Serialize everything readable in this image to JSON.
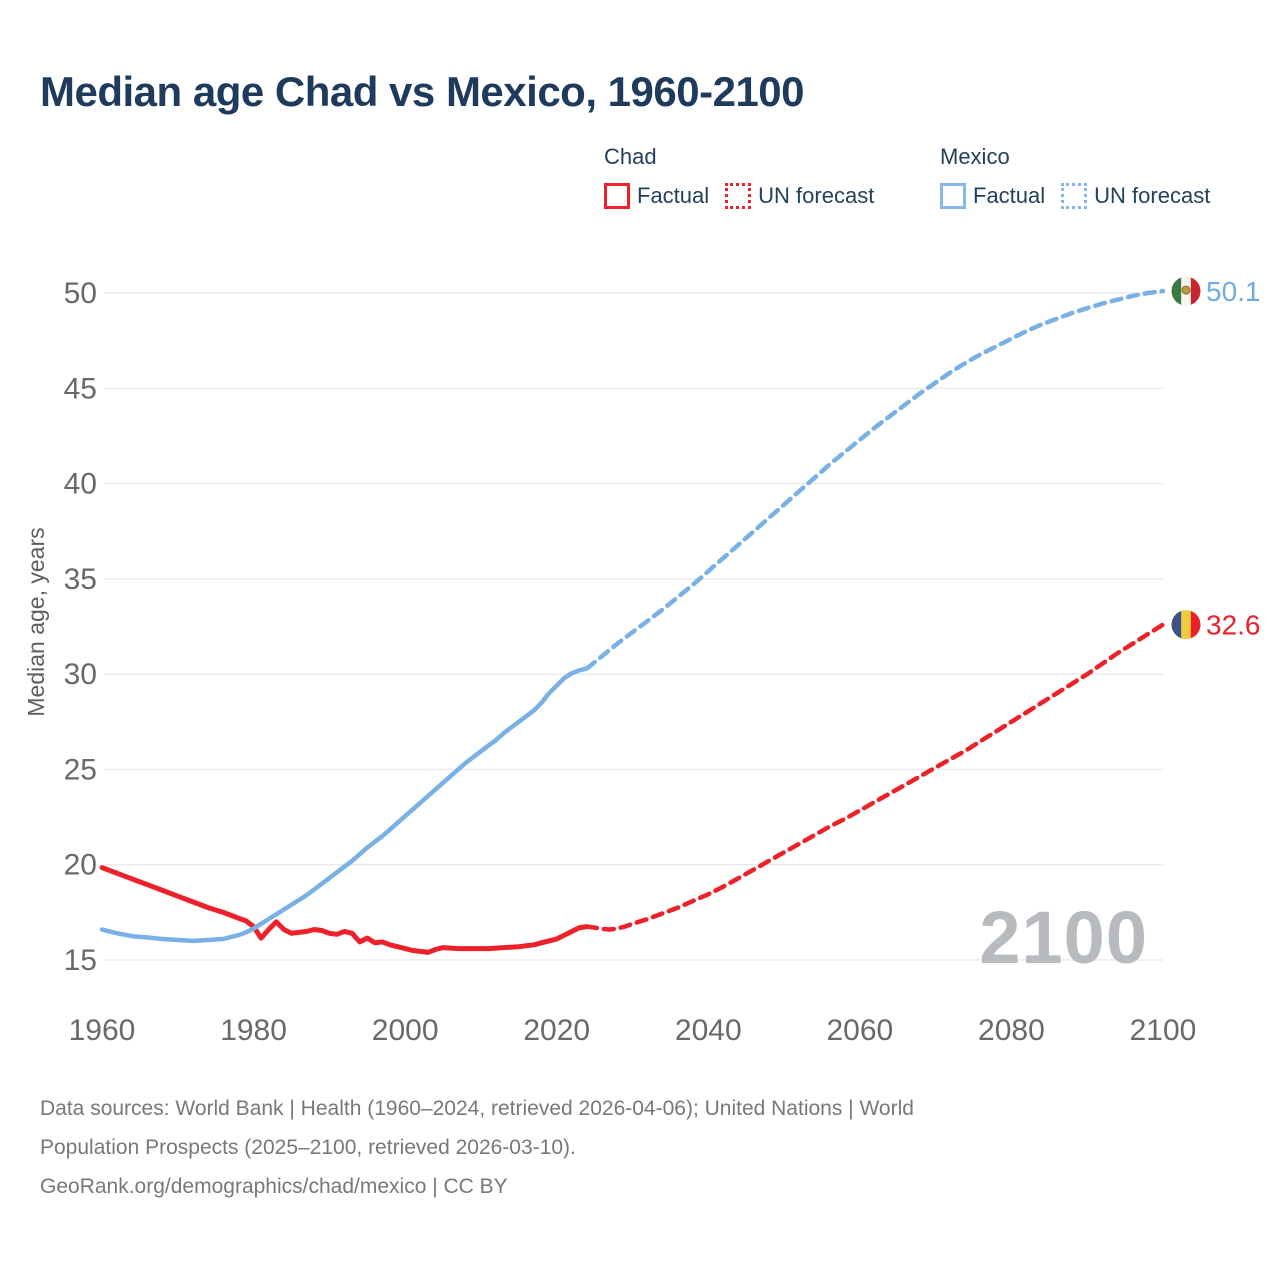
{
  "title": "Median age Chad vs Mexico, 1960-2100",
  "legend": {
    "groups": [
      {
        "name": "Chad",
        "color": "#ed2129",
        "items": [
          {
            "label": "Factual",
            "style": "solid"
          },
          {
            "label": "UN forecast",
            "style": "dotted"
          }
        ]
      },
      {
        "name": "Mexico",
        "color": "#85b8e8",
        "items": [
          {
            "label": "Factual",
            "style": "solid"
          },
          {
            "label": "UN forecast",
            "style": "dotted"
          }
        ]
      }
    ]
  },
  "chart_data": {
    "type": "line",
    "title": "Median age Chad vs Mexico, 1960-2100",
    "xlabel": "",
    "ylabel": "Median age, years",
    "xlim": [
      1960,
      2100
    ],
    "ylim": [
      15,
      50
    ],
    "x_ticks": [
      1960,
      1980,
      2000,
      2020,
      2040,
      2060,
      2080,
      2100
    ],
    "y_ticks": [
      15,
      20,
      25,
      30,
      35,
      40,
      45,
      50
    ],
    "grid": true,
    "watermark": "2100",
    "series": [
      {
        "name": "Chad factual",
        "color": "#ed2129",
        "dash": "solid",
        "width": 5,
        "points": [
          [
            1960,
            19.85
          ],
          [
            1962,
            19.55
          ],
          [
            1964,
            19.25
          ],
          [
            1966,
            18.95
          ],
          [
            1968,
            18.65
          ],
          [
            1970,
            18.35
          ],
          [
            1972,
            18.05
          ],
          [
            1974,
            17.75
          ],
          [
            1976,
            17.5
          ],
          [
            1978,
            17.2
          ],
          [
            1979,
            17.05
          ],
          [
            1980,
            16.75
          ],
          [
            1981,
            16.15
          ],
          [
            1982,
            16.6
          ],
          [
            1983,
            17.0
          ],
          [
            1984,
            16.6
          ],
          [
            1985,
            16.4
          ],
          [
            1986,
            16.45
          ],
          [
            1987,
            16.5
          ],
          [
            1988,
            16.6
          ],
          [
            1989,
            16.55
          ],
          [
            1990,
            16.4
          ],
          [
            1991,
            16.35
          ],
          [
            1992,
            16.5
          ],
          [
            1993,
            16.4
          ],
          [
            1994,
            15.95
          ],
          [
            1995,
            16.15
          ],
          [
            1996,
            15.9
          ],
          [
            1997,
            15.95
          ],
          [
            1998,
            15.8
          ],
          [
            1999,
            15.7
          ],
          [
            2000,
            15.6
          ],
          [
            2001,
            15.5
          ],
          [
            2002,
            15.45
          ],
          [
            2003,
            15.4
          ],
          [
            2004,
            15.55
          ],
          [
            2005,
            15.65
          ],
          [
            2007,
            15.6
          ],
          [
            2009,
            15.6
          ],
          [
            2011,
            15.6
          ],
          [
            2013,
            15.65
          ],
          [
            2015,
            15.7
          ],
          [
            2016,
            15.75
          ],
          [
            2017,
            15.8
          ],
          [
            2018,
            15.9
          ],
          [
            2019,
            16.0
          ],
          [
            2020,
            16.1
          ],
          [
            2021,
            16.3
          ],
          [
            2022,
            16.5
          ],
          [
            2023,
            16.7
          ],
          [
            2024,
            16.75
          ]
        ]
      },
      {
        "name": "Chad UN forecast",
        "color": "#ed2129",
        "dash": "dashed",
        "width": 4.5,
        "points": [
          [
            2024,
            16.75
          ],
          [
            2025,
            16.7
          ],
          [
            2026,
            16.63
          ],
          [
            2027,
            16.6
          ],
          [
            2028,
            16.65
          ],
          [
            2029,
            16.75
          ],
          [
            2030,
            16.9
          ],
          [
            2032,
            17.15
          ],
          [
            2034,
            17.45
          ],
          [
            2036,
            17.75
          ],
          [
            2038,
            18.1
          ],
          [
            2040,
            18.45
          ],
          [
            2042,
            18.85
          ],
          [
            2044,
            19.3
          ],
          [
            2046,
            19.75
          ],
          [
            2048,
            20.2
          ],
          [
            2050,
            20.65
          ],
          [
            2052,
            21.1
          ],
          [
            2054,
            21.55
          ],
          [
            2056,
            22.0
          ],
          [
            2058,
            22.4
          ],
          [
            2060,
            22.85
          ],
          [
            2062,
            23.3
          ],
          [
            2064,
            23.75
          ],
          [
            2066,
            24.2
          ],
          [
            2068,
            24.65
          ],
          [
            2070,
            25.1
          ],
          [
            2072,
            25.55
          ],
          [
            2074,
            26.0
          ],
          [
            2076,
            26.5
          ],
          [
            2078,
            27.0
          ],
          [
            2080,
            27.5
          ],
          [
            2082,
            28.0
          ],
          [
            2084,
            28.5
          ],
          [
            2086,
            29.0
          ],
          [
            2088,
            29.5
          ],
          [
            2090,
            30.0
          ],
          [
            2092,
            30.55
          ],
          [
            2094,
            31.1
          ],
          [
            2096,
            31.6
          ],
          [
            2098,
            32.1
          ],
          [
            2100,
            32.6
          ]
        ]
      },
      {
        "name": "Mexico factual",
        "color": "#79b1e6",
        "dash": "solid",
        "width": 4.5,
        "points": [
          [
            1960,
            16.6
          ],
          [
            1962,
            16.4
          ],
          [
            1964,
            16.25
          ],
          [
            1966,
            16.18
          ],
          [
            1968,
            16.1
          ],
          [
            1970,
            16.05
          ],
          [
            1972,
            16.0
          ],
          [
            1974,
            16.05
          ],
          [
            1976,
            16.1
          ],
          [
            1977,
            16.2
          ],
          [
            1978,
            16.3
          ],
          [
            1979,
            16.45
          ],
          [
            1980,
            16.65
          ],
          [
            1981,
            16.9
          ],
          [
            1982,
            17.15
          ],
          [
            1983,
            17.4
          ],
          [
            1984,
            17.65
          ],
          [
            1985,
            17.9
          ],
          [
            1986,
            18.15
          ],
          [
            1987,
            18.4
          ],
          [
            1988,
            18.7
          ],
          [
            1989,
            19.0
          ],
          [
            1990,
            19.3
          ],
          [
            1991,
            19.6
          ],
          [
            1992,
            19.9
          ],
          [
            1993,
            20.2
          ],
          [
            1994,
            20.55
          ],
          [
            1995,
            20.9
          ],
          [
            1996,
            21.2
          ],
          [
            1997,
            21.5
          ],
          [
            1998,
            21.85
          ],
          [
            1999,
            22.2
          ],
          [
            2000,
            22.55
          ],
          [
            2001,
            22.9
          ],
          [
            2002,
            23.25
          ],
          [
            2003,
            23.6
          ],
          [
            2004,
            23.95
          ],
          [
            2005,
            24.3
          ],
          [
            2006,
            24.65
          ],
          [
            2007,
            25.0
          ],
          [
            2008,
            25.35
          ],
          [
            2009,
            25.65
          ],
          [
            2010,
            25.95
          ],
          [
            2011,
            26.25
          ],
          [
            2012,
            26.55
          ],
          [
            2013,
            26.9
          ],
          [
            2014,
            27.2
          ],
          [
            2015,
            27.5
          ],
          [
            2016,
            27.8
          ],
          [
            2017,
            28.1
          ],
          [
            2018,
            28.5
          ],
          [
            2019,
            29.0
          ],
          [
            2020,
            29.4
          ],
          [
            2021,
            29.8
          ],
          [
            2022,
            30.05
          ],
          [
            2023,
            30.2
          ],
          [
            2024,
            30.3
          ]
        ]
      },
      {
        "name": "Mexico UN forecast",
        "color": "#79b1e6",
        "dash": "dashed",
        "width": 4.5,
        "points": [
          [
            2024,
            30.3
          ],
          [
            2026,
            30.95
          ],
          [
            2028,
            31.6
          ],
          [
            2030,
            32.2
          ],
          [
            2032,
            32.8
          ],
          [
            2034,
            33.4
          ],
          [
            2036,
            34.05
          ],
          [
            2038,
            34.7
          ],
          [
            2040,
            35.4
          ],
          [
            2042,
            36.1
          ],
          [
            2044,
            36.8
          ],
          [
            2046,
            37.5
          ],
          [
            2048,
            38.2
          ],
          [
            2050,
            38.9
          ],
          [
            2052,
            39.6
          ],
          [
            2054,
            40.3
          ],
          [
            2056,
            41.0
          ],
          [
            2058,
            41.65
          ],
          [
            2060,
            42.3
          ],
          [
            2062,
            42.95
          ],
          [
            2064,
            43.55
          ],
          [
            2066,
            44.15
          ],
          [
            2068,
            44.75
          ],
          [
            2070,
            45.3
          ],
          [
            2072,
            45.85
          ],
          [
            2074,
            46.35
          ],
          [
            2076,
            46.8
          ],
          [
            2078,
            47.2
          ],
          [
            2080,
            47.6
          ],
          [
            2082,
            48.0
          ],
          [
            2084,
            48.35
          ],
          [
            2086,
            48.65
          ],
          [
            2088,
            48.95
          ],
          [
            2090,
            49.2
          ],
          [
            2092,
            49.45
          ],
          [
            2094,
            49.65
          ],
          [
            2096,
            49.85
          ],
          [
            2098,
            50.0
          ],
          [
            2100,
            50.1
          ]
        ]
      }
    ],
    "end_labels": [
      {
        "name": "mexico-end",
        "value": "50.1",
        "y": 50.1,
        "text_color": "#6fabe0",
        "flag": "mexico-flag-icon",
        "flag_stripes": [
          "#3d7a43",
          "#f6f5f1",
          "#c8242f"
        ],
        "flag_emblem": "#c09a3e"
      },
      {
        "name": "chad-end",
        "value": "32.6",
        "y": 32.6,
        "text_color": "#ed2129",
        "flag": "chad-flag-icon",
        "flag_stripes": [
          "#3a5286",
          "#f0cb3d",
          "#ea2129"
        ],
        "flag_emblem": null
      }
    ],
    "legend_position": "top-right"
  },
  "footer": {
    "lines": [
      "Data sources: World Bank | Health (1960–2024, retrieved 2026-04-06); United Nations | World",
      "Population Prospects (2025–2100, retrieved 2026-03-10).",
      "GeoRank.org/demographics/chad/mexico | CC BY"
    ]
  }
}
